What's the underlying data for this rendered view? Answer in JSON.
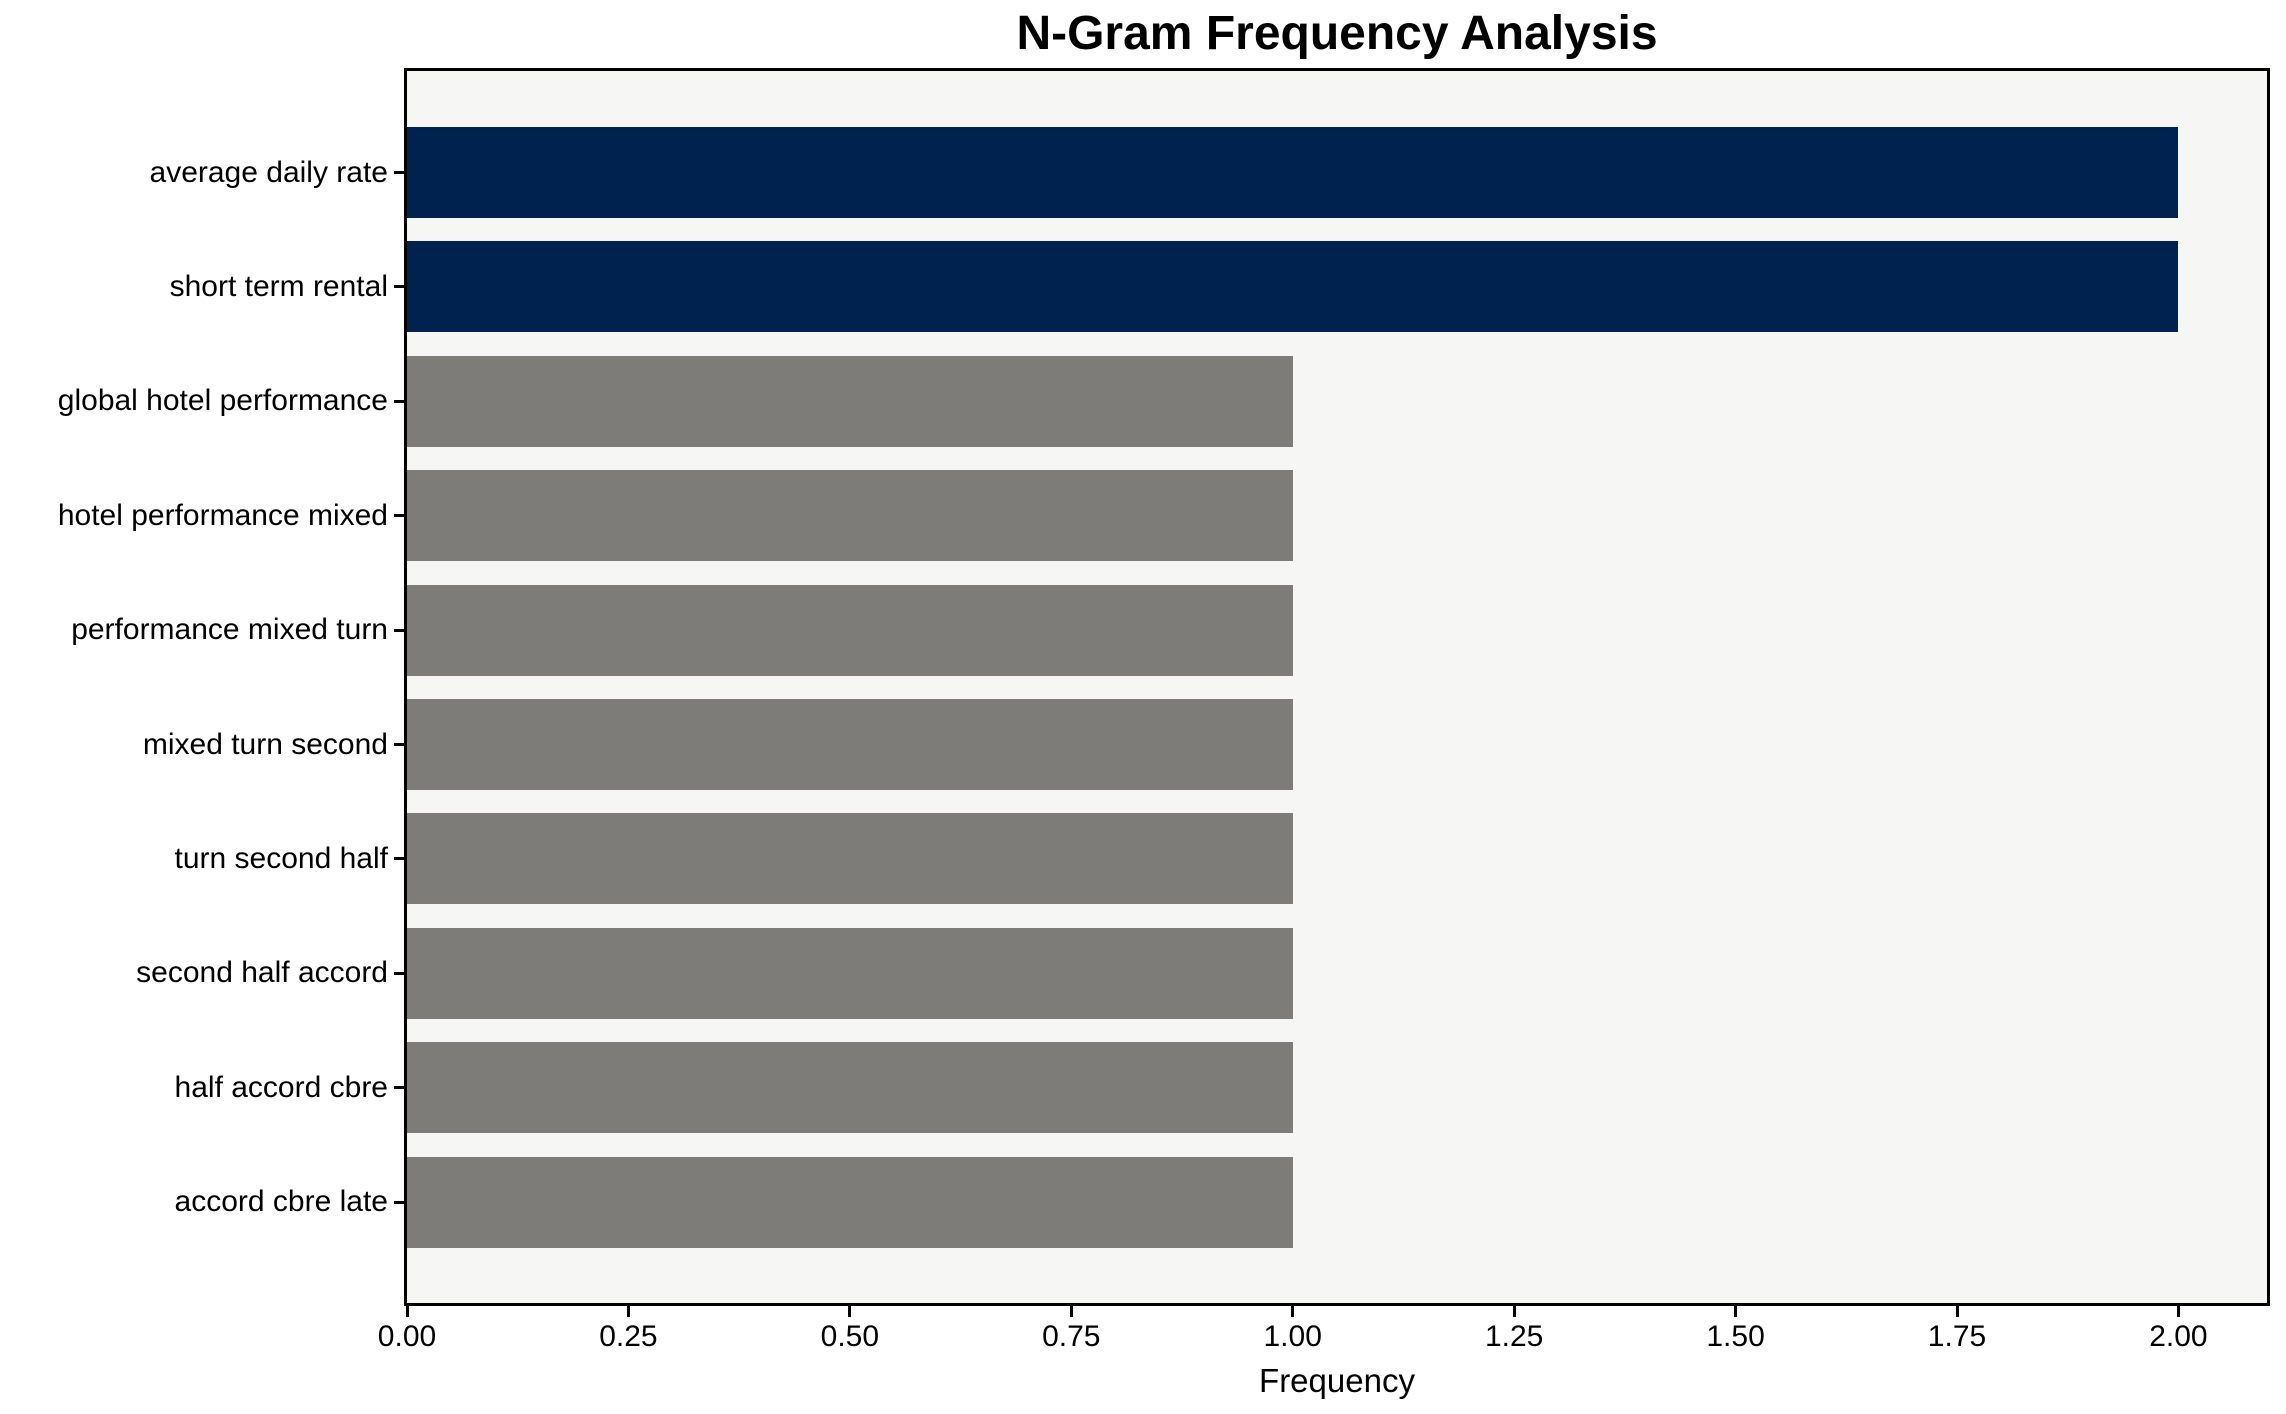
{
  "chart_data": {
    "type": "bar",
    "orientation": "horizontal",
    "title": "N-Gram Frequency Analysis",
    "xlabel": "Frequency",
    "ylabel": "",
    "categories": [
      "average daily rate",
      "short term rental",
      "global hotel performance",
      "hotel performance mixed",
      "performance mixed turn",
      "mixed turn second",
      "turn second half",
      "second half accord",
      "half accord cbre",
      "accord cbre late"
    ],
    "values": [
      2,
      2,
      1,
      1,
      1,
      1,
      1,
      1,
      1,
      1
    ],
    "bar_colors": [
      "#00224e",
      "#00224e",
      "#7d7c78",
      "#7d7c78",
      "#7d7c78",
      "#7d7c78",
      "#7d7c78",
      "#7d7c78",
      "#7d7c78",
      "#7d7c78"
    ],
    "xlim": [
      0,
      2.1
    ],
    "xtick_values": [
      0,
      0.25,
      0.5,
      0.75,
      1.0,
      1.25,
      1.5,
      1.75,
      2.0
    ],
    "xtick_labels": [
      "0.00",
      "0.25",
      "0.50",
      "0.75",
      "1.00",
      "1.25",
      "1.50",
      "1.75",
      "2.00"
    ],
    "grid": false,
    "legend": false,
    "colors": {
      "highlight_bar": "#00224e",
      "default_bar": "#7d7c78",
      "plot_background": "#f6f6f4",
      "figure_background": "#ffffff",
      "axis": "#000000",
      "text": "#000000"
    }
  }
}
